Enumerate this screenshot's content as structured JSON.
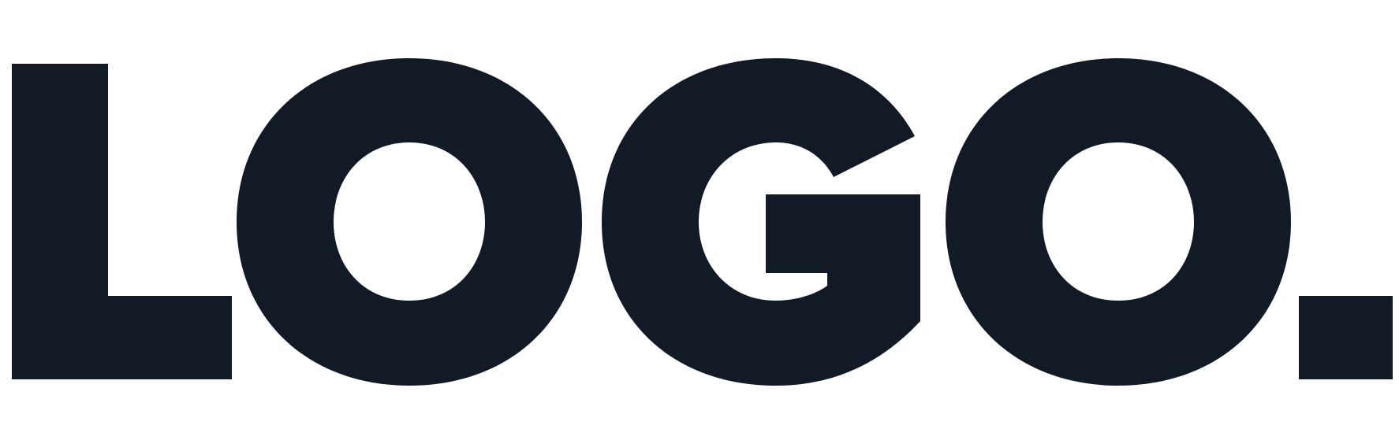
{
  "logo": {
    "wordmark": "LOGO.",
    "color": "#121a26",
    "background": "#ffffff"
  }
}
